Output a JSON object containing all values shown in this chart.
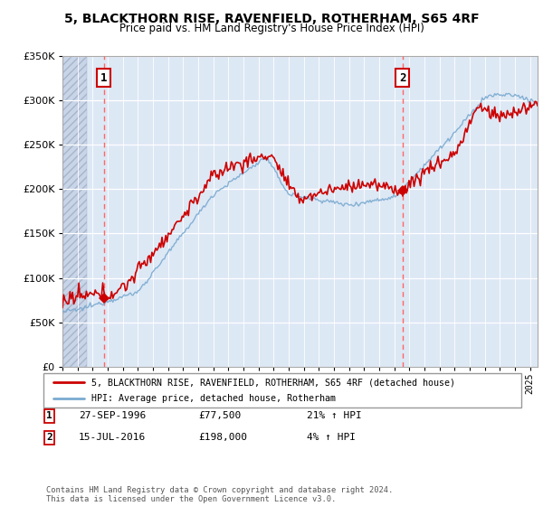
{
  "title": "5, BLACKTHORN RISE, RAVENFIELD, ROTHERHAM, S65 4RF",
  "subtitle": "Price paid vs. HM Land Registry's House Price Index (HPI)",
  "ylim": [
    0,
    350000
  ],
  "xlim_start": 1994.0,
  "xlim_end": 2025.5,
  "purchase1_year": 1996.74,
  "purchase1_price": 77500,
  "purchase1_label": "1",
  "purchase1_date": "27-SEP-1996",
  "purchase1_amount": "£77,500",
  "purchase1_hpi": "21% ↑ HPI",
  "purchase2_year": 2016.54,
  "purchase2_price": 198000,
  "purchase2_label": "2",
  "purchase2_date": "15-JUL-2016",
  "purchase2_amount": "£198,000",
  "purchase2_hpi": "4% ↑ HPI",
  "legend_line1": "5, BLACKTHORN RISE, RAVENFIELD, ROTHERHAM, S65 4RF (detached house)",
  "legend_line2": "HPI: Average price, detached house, Rotherham",
  "footer": "Contains HM Land Registry data © Crown copyright and database right 2024.\nThis data is licensed under the Open Government Licence v3.0.",
  "price_color": "#cc0000",
  "hpi_color": "#7aaad0",
  "bg_color": "#dde8f5",
  "dashed_line_color": "#ff6666"
}
